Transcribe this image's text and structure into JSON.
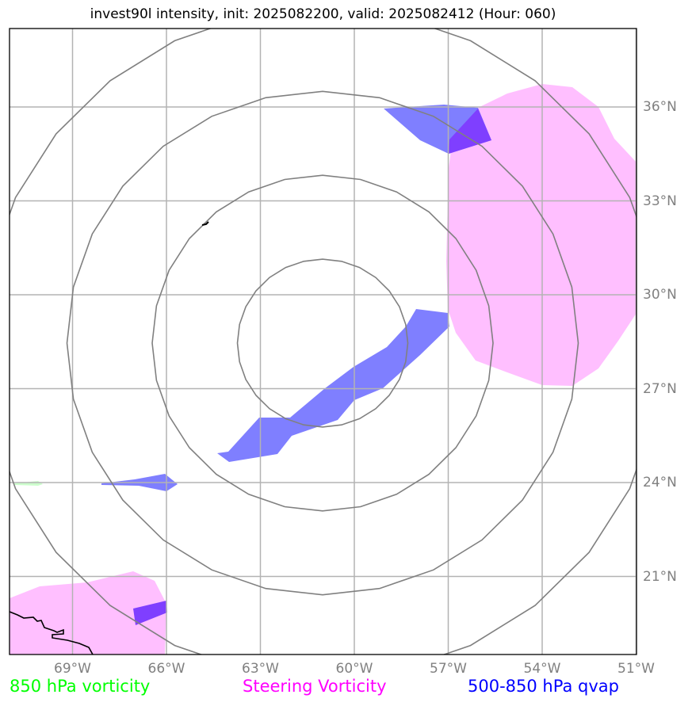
{
  "title": "invest90l intensity, init: 2025082200, valid: 2025082412 (Hour: 060)",
  "map": {
    "lon_labels": [
      "69°W",
      "66°W",
      "63°W",
      "60°W",
      "57°W",
      "54°W",
      "51°W"
    ],
    "lat_labels": [
      "36°N",
      "33°N",
      "30°N",
      "27°N",
      "24°N",
      "21°N"
    ],
    "lon_values": [
      -69,
      -66,
      -63,
      -60,
      -57,
      -54,
      -51
    ],
    "lat_values": [
      36,
      33,
      30,
      27,
      24,
      21
    ],
    "extent": {
      "lon_min": -71,
      "lon_max": -51,
      "lat_min": 18,
      "lat_max": 38
    },
    "range_rings": 4
  },
  "legend": [
    {
      "label": "850 hPa vorticity",
      "color": "#00ff00"
    },
    {
      "label": "Steering Vorticity",
      "color": "#ff00ff"
    },
    {
      "label": "500-850 hPa qvap",
      "color": "#0000ff"
    }
  ],
  "colors": {
    "steering_fill": "#ffbfff",
    "qvap_fill": "#7f7fff",
    "overlap_fill": "#7f3fff",
    "vort850_fill": "#ccffcc",
    "grid": "#b3b3b3",
    "rings": "#808080"
  }
}
